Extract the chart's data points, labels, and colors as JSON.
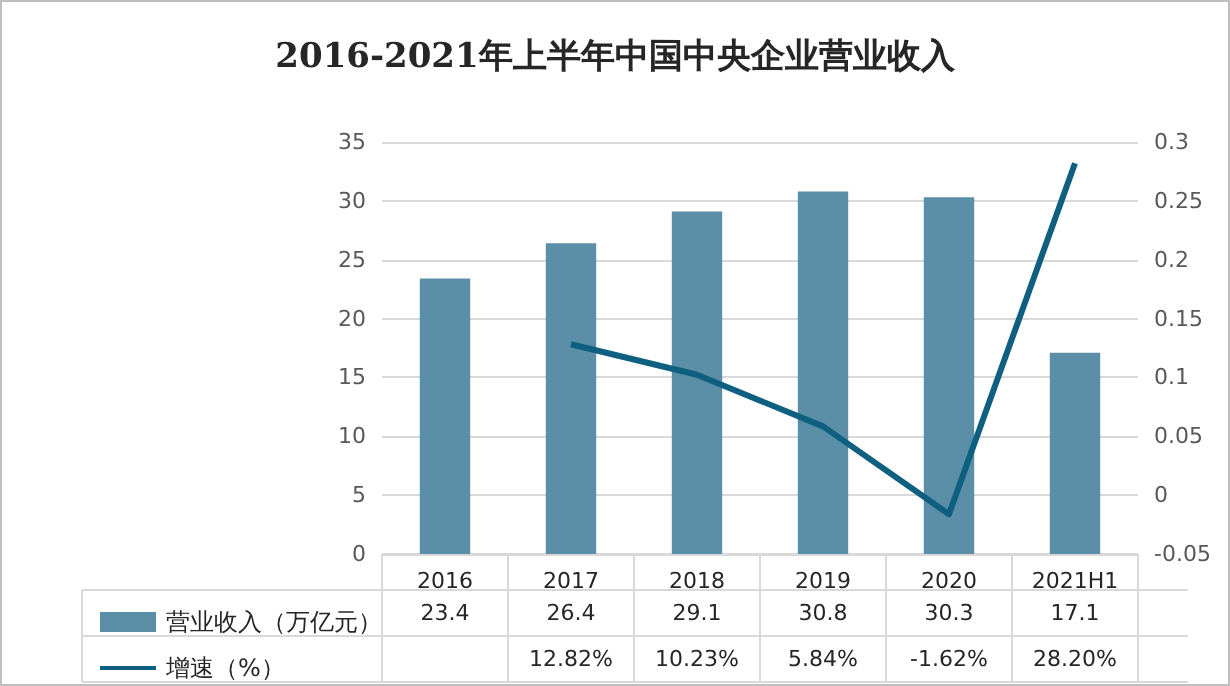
{
  "chart_data": {
    "type": "bar",
    "title": "2016-2021年上半年中国中央企业营业收入",
    "categories": [
      "2016",
      "2017",
      "2018",
      "2019",
      "2020",
      "2021H1"
    ],
    "series": [
      {
        "name": "营业收入（万亿元）",
        "color": "#5b8fa8",
        "values": [
          23.4,
          26.4,
          29.1,
          30.8,
          30.3,
          17.1
        ],
        "value_labels": [
          "23.4",
          "26.4",
          "29.1",
          "30.8",
          "30.3",
          "17.1"
        ]
      },
      {
        "name": "增速（%）",
        "type": "line",
        "axis": "y2",
        "color": "#0e5f80",
        "values": [
          null,
          0.1282,
          0.1023,
          0.0584,
          -0.0162,
          0.282
        ],
        "value_labels": [
          null,
          "12.82%",
          "10.23%",
          "5.84%",
          "-1.62%",
          "28.20%"
        ]
      }
    ],
    "ylim": [
      0,
      35
    ],
    "yticks": [
      0,
      5,
      10,
      15,
      20,
      25,
      30,
      35
    ],
    "y2lim": [
      -0.05,
      0.3
    ],
    "y2ticks": [
      -0.05,
      0,
      0.05,
      0.1,
      0.15,
      0.2,
      0.25,
      0.3
    ],
    "grid": "y",
    "legend": "bottom",
    "marker": "none"
  }
}
